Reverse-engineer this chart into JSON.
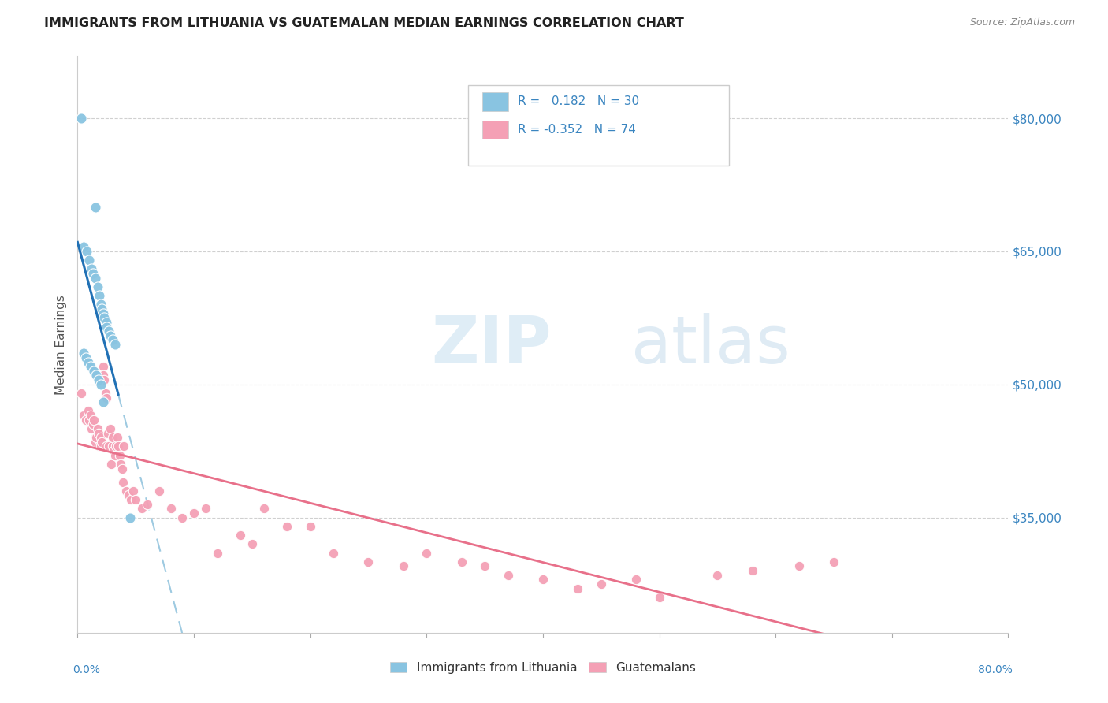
{
  "title": "IMMIGRANTS FROM LITHUANIA VS GUATEMALAN MEDIAN EARNINGS CORRELATION CHART",
  "source": "Source: ZipAtlas.com",
  "ylabel": "Median Earnings",
  "y_ticks": [
    35000,
    50000,
    65000,
    80000
  ],
  "y_tick_labels": [
    "$35,000",
    "$50,000",
    "$65,000",
    "$80,000"
  ],
  "blue_color": "#89c4e1",
  "pink_color": "#f4a0b5",
  "trend_blue_solid": "#2171b5",
  "trend_blue_dash": "#9ecae1",
  "trend_pink": "#e8708a",
  "watermark_zip": "ZIP",
  "watermark_atlas": "atlas",
  "lith_x": [
    0.3,
    1.5,
    0.5,
    0.8,
    1.0,
    1.2,
    1.3,
    1.5,
    1.7,
    1.9,
    2.0,
    2.1,
    2.2,
    2.3,
    2.5,
    2.5,
    2.7,
    2.8,
    3.0,
    3.2,
    0.5,
    0.7,
    0.9,
    1.1,
    1.4,
    1.6,
    1.8,
    2.0,
    2.2,
    4.5
  ],
  "lith_y": [
    80000,
    70000,
    65500,
    65000,
    64000,
    63000,
    62500,
    62000,
    61000,
    60000,
    59000,
    58500,
    58000,
    57500,
    57000,
    56500,
    56000,
    55500,
    55000,
    54500,
    53500,
    53000,
    52500,
    52000,
    51500,
    51000,
    50500,
    50000,
    48000,
    35000
  ],
  "guat_x": [
    0.3,
    0.5,
    0.7,
    0.9,
    1.0,
    1.1,
    1.2,
    1.3,
    1.4,
    1.5,
    1.5,
    1.6,
    1.7,
    1.8,
    1.9,
    2.0,
    2.0,
    2.1,
    2.2,
    2.2,
    2.3,
    2.4,
    2.5,
    2.5,
    2.6,
    2.7,
    2.8,
    2.9,
    3.0,
    3.0,
    3.1,
    3.2,
    3.3,
    3.4,
    3.5,
    3.6,
    3.7,
    3.8,
    3.9,
    4.0,
    4.2,
    4.4,
    4.6,
    4.8,
    5.0,
    5.5,
    6.0,
    7.0,
    8.0,
    9.0,
    10.0,
    11.0,
    12.0,
    14.0,
    15.0,
    16.0,
    18.0,
    20.0,
    22.0,
    25.0,
    28.0,
    30.0,
    33.0,
    35.0,
    37.0,
    40.0,
    43.0,
    45.0,
    48.0,
    50.0,
    55.0,
    58.0,
    62.0,
    65.0
  ],
  "guat_y": [
    49000,
    46500,
    46000,
    47000,
    46000,
    46500,
    45000,
    45500,
    46000,
    44000,
    43500,
    44000,
    45000,
    44500,
    43000,
    43000,
    44000,
    43500,
    52000,
    51000,
    50500,
    49000,
    48500,
    43000,
    44500,
    43000,
    45000,
    41000,
    43000,
    44000,
    42500,
    42000,
    43000,
    44000,
    43000,
    42000,
    41000,
    40500,
    39000,
    43000,
    38000,
    37500,
    37000,
    38000,
    37000,
    36000,
    36500,
    38000,
    36000,
    35000,
    35500,
    36000,
    31000,
    33000,
    32000,
    36000,
    34000,
    34000,
    31000,
    30000,
    29500,
    31000,
    30000,
    29500,
    28500,
    28000,
    27000,
    27500,
    28000,
    26000,
    28500,
    29000,
    29500,
    30000
  ],
  "xlim": [
    0,
    80
  ],
  "ylim": [
    22000,
    87000
  ],
  "solid_x_end": 3.5,
  "lith_trend_x_start": 0,
  "lith_trend_x_end": 80,
  "guat_trend_x_start": 0,
  "guat_trend_x_end": 80
}
